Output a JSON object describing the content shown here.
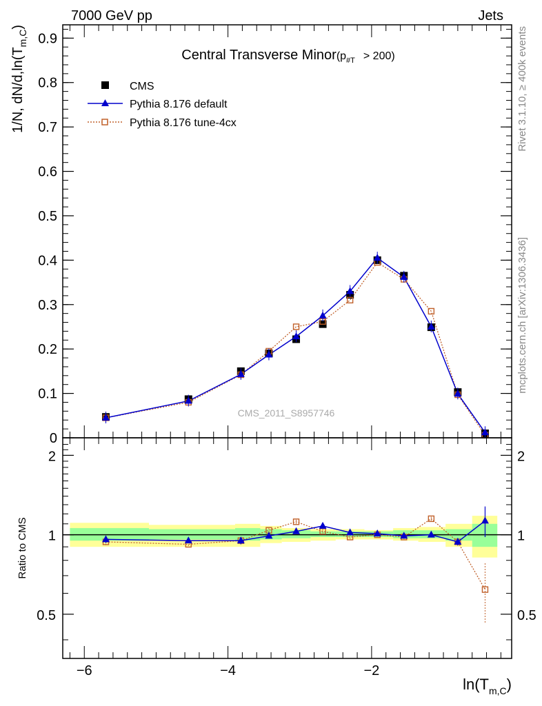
{
  "header": {
    "energy_label": "7000 GeV pp",
    "process_label": "Jets"
  },
  "side_labels": {
    "rivet": "Rivet 3.1.10, ≥ 400k events",
    "mcplots": "mcplots.cern.ch [arXiv:1306.3436]"
  },
  "watermark": "CMS_2011_S8957746",
  "chart_data": [
    {
      "type": "line",
      "title": "Central Transverse Minor",
      "title_sub_main": "p",
      "title_sub_index": "#T",
      "title_cut": "> 200)",
      "ylabel_main": "1/N",
      "ylabel_rest": ", dN/d,ln(T",
      "ylabel_index": "m,C",
      "ylabel_close": ")",
      "xlim": [
        -6.3,
        -0.05
      ],
      "ylim": [
        0,
        0.93
      ],
      "yticks": [
        0,
        0.1,
        0.2,
        0.3,
        0.4,
        0.5,
        0.6,
        0.7,
        0.8,
        0.9
      ],
      "ytick_labels": [
        "0",
        "0.1",
        "0.2",
        "0.3",
        "0.4",
        "0.5",
        "0.6",
        "0.7",
        "0.8",
        "0.9"
      ],
      "legend_position": "top-left",
      "series": [
        {
          "name": "CMS",
          "color": "#000000",
          "marker": "square",
          "x": [
            -5.7,
            -4.55,
            -3.82,
            -3.43,
            -3.05,
            -2.68,
            -2.3,
            -1.92,
            -1.55,
            -1.17,
            -0.8,
            -0.42
          ],
          "y": [
            0.047,
            0.087,
            0.15,
            0.19,
            0.222,
            0.256,
            0.322,
            0.4,
            0.365,
            0.249,
            0.103,
            0.01
          ]
        },
        {
          "name": "Pythia 8.176 default",
          "color": "#0000cc",
          "marker": "triangle",
          "x": [
            -5.7,
            -4.55,
            -3.82,
            -3.43,
            -3.05,
            -2.68,
            -2.3,
            -1.92,
            -1.55,
            -1.17,
            -0.8,
            -0.42
          ],
          "y": [
            0.045,
            0.083,
            0.143,
            0.187,
            0.228,
            0.275,
            0.33,
            0.405,
            0.362,
            0.25,
            0.099,
            0.012
          ]
        },
        {
          "name": "Pythia 8.176 tune-4cx",
          "color": "#c0602a",
          "marker": "open-square",
          "x": [
            -5.7,
            -4.55,
            -3.82,
            -3.43,
            -3.05,
            -2.68,
            -2.3,
            -1.92,
            -1.55,
            -1.17,
            -0.8,
            -0.42
          ],
          "y": [
            0.045,
            0.08,
            0.142,
            0.195,
            0.25,
            0.262,
            0.31,
            0.395,
            0.357,
            0.285,
            0.097,
            0.006
          ]
        }
      ]
    },
    {
      "type": "line",
      "ylabel": "Ratio to CMS",
      "xlabel_main": "ln(T",
      "xlabel_index": "m,C",
      "xlabel_close": ")",
      "xlim": [
        -6.3,
        -0.05
      ],
      "ylim": [
        0.34,
        2.33
      ],
      "xticks": [
        -6,
        -4,
        -2
      ],
      "xtick_labels": [
        "−6",
        "−4",
        "−2"
      ],
      "yticks": [
        0.5,
        1,
        2
      ],
      "ytick_labels": [
        "0.5",
        "1",
        "2"
      ],
      "bins": [
        -6.2,
        -5.1,
        -3.9,
        -3.55,
        -3.25,
        -2.85,
        -2.5,
        -2.1,
        -1.7,
        -1.35,
        -0.97,
        -0.6,
        -0.25
      ],
      "band_inner_low": [
        0.95,
        0.96,
        0.95,
        0.96,
        0.97,
        0.98,
        0.98,
        0.98,
        0.97,
        0.97,
        0.95,
        0.9
      ],
      "band_inner_high": [
        1.06,
        1.05,
        1.06,
        1.05,
        1.04,
        1.03,
        1.03,
        1.03,
        1.04,
        1.04,
        1.05,
        1.1
      ],
      "band_outer_low": [
        0.9,
        0.9,
        0.9,
        0.93,
        0.94,
        0.95,
        0.96,
        0.96,
        0.95,
        0.94,
        0.9,
        0.82
      ],
      "band_outer_high": [
        1.11,
        1.09,
        1.1,
        1.08,
        1.06,
        1.05,
        1.05,
        1.04,
        1.06,
        1.07,
        1.1,
        1.18
      ],
      "series": [
        {
          "name": "Pythia 8.176 default",
          "color": "#0000cc",
          "x": [
            -5.7,
            -4.55,
            -3.82,
            -3.43,
            -3.05,
            -2.68,
            -2.3,
            -1.92,
            -1.55,
            -1.17,
            -0.8,
            -0.42
          ],
          "y": [
            0.96,
            0.95,
            0.95,
            0.99,
            1.03,
            1.08,
            1.02,
            1.01,
            0.99,
            1.0,
            0.94,
            1.13
          ],
          "err": [
            0.03,
            0.02,
            0.03,
            0.02,
            0.02,
            0.02,
            0.02,
            0.02,
            0.02,
            0.02,
            0.03,
            0.15
          ]
        },
        {
          "name": "Pythia 8.176 tune-4cx",
          "color": "#c0602a",
          "x": [
            -5.7,
            -4.55,
            -3.82,
            -3.43,
            -3.05,
            -2.68,
            -2.3,
            -1.92,
            -1.55,
            -1.17,
            -0.8,
            -0.42
          ],
          "y": [
            0.94,
            0.92,
            0.95,
            1.04,
            1.12,
            1.03,
            0.98,
            1.0,
            0.98,
            1.15,
            0.94,
            0.62
          ],
          "err": [
            0.03,
            0.02,
            0.03,
            0.02,
            0.02,
            0.02,
            0.02,
            0.02,
            0.02,
            0.02,
            0.03,
            0.16
          ]
        }
      ]
    }
  ]
}
